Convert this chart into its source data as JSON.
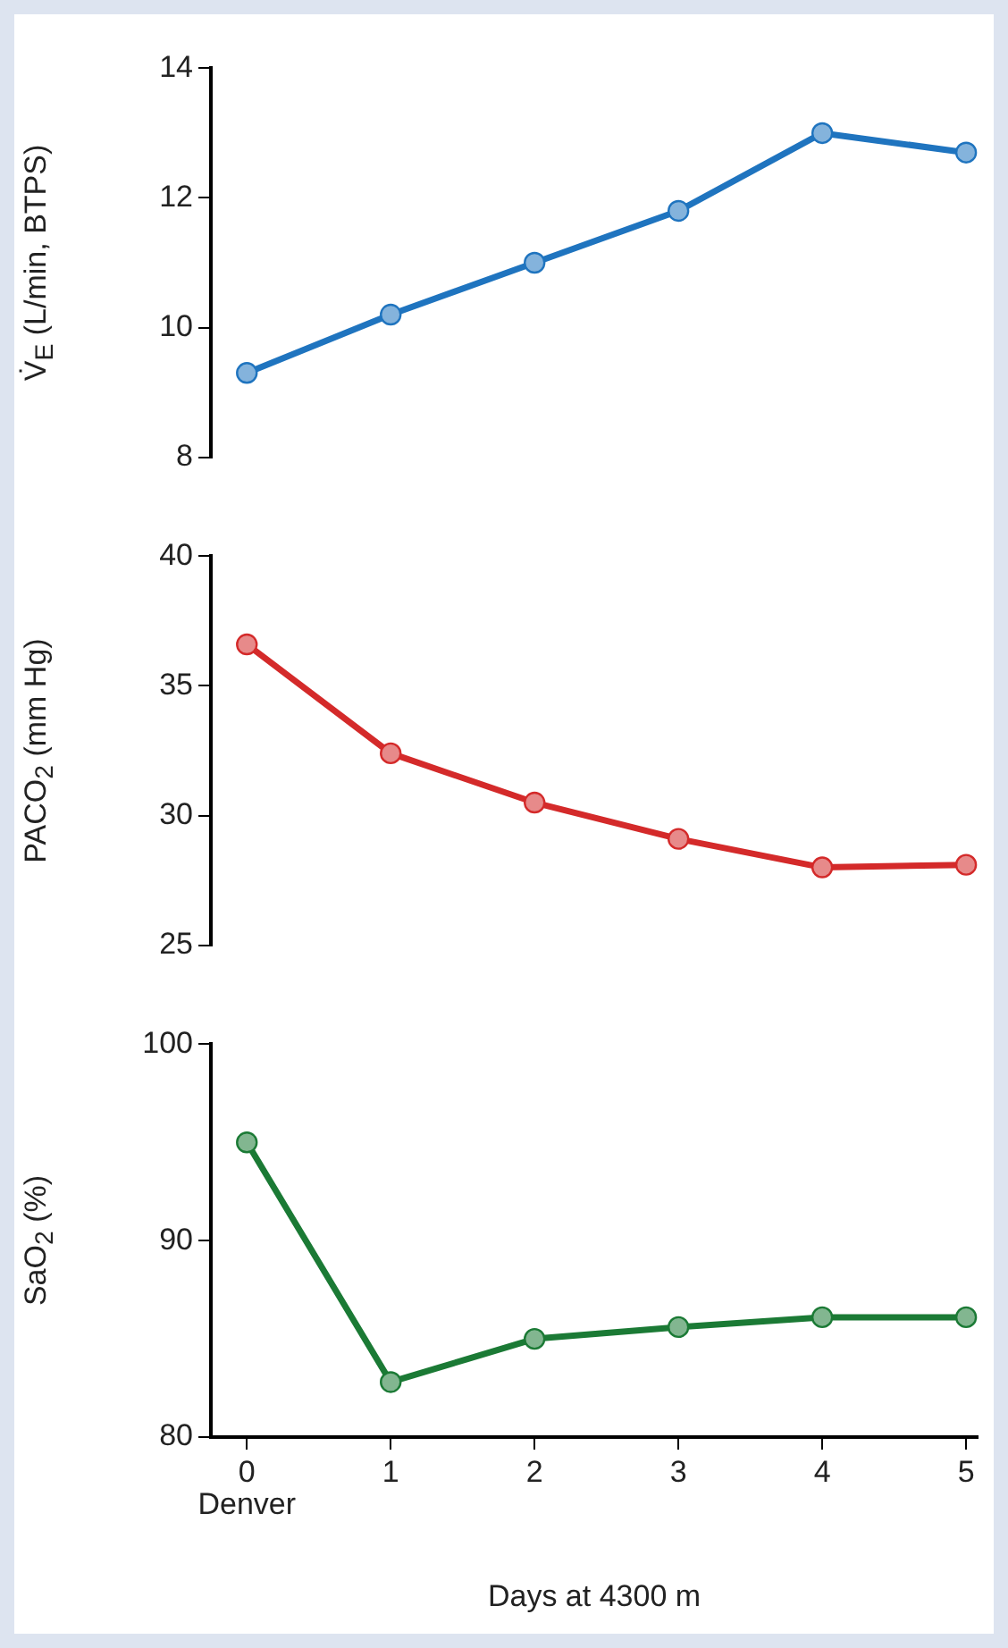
{
  "chart_data": [
    {
      "type": "line",
      "ylabel": "V̇$_{E}$ (L/min, BTPS)",
      "x": [
        0,
        1,
        2,
        3,
        4,
        5
      ],
      "ylim": [
        8,
        14
      ],
      "yticks": [
        8,
        10,
        12,
        14
      ],
      "tick_labels": "y",
      "marker": "circle",
      "series": [
        {
          "color": "#1f74bf",
          "values": [
            9.3,
            10.2,
            11.0,
            11.8,
            13.0,
            12.7
          ]
        }
      ]
    },
    {
      "type": "line",
      "ylabel": "PACO$_{2}$ (mm Hg)",
      "x": [
        0,
        1,
        2,
        3,
        4,
        5
      ],
      "ylim": [
        25,
        40
      ],
      "yticks": [
        25,
        30,
        35,
        40
      ],
      "tick_labels": "y",
      "marker": "circle",
      "series": [
        {
          "color": "#d42a2a",
          "values": [
            36.6,
            32.4,
            30.5,
            29.1,
            28.0,
            28.1
          ]
        }
      ]
    },
    {
      "type": "line",
      "ylabel": "SaO$_{2}$ (%)",
      "xlabel": "Days at 4300 m",
      "x": [
        0,
        1,
        2,
        3,
        4,
        5
      ],
      "xlim": [
        -0.25,
        5.08
      ],
      "xticks": [
        0,
        1,
        2,
        3,
        4,
        5
      ],
      "ylim": [
        80,
        100
      ],
      "yticks": [
        80,
        90,
        100
      ],
      "marker": "circle",
      "annotations": [
        "Denver"
      ],
      "series": [
        {
          "color": "#1b7a35",
          "values": [
            95.0,
            82.8,
            85.0,
            85.6,
            86.1,
            86.1
          ]
        }
      ]
    }
  ]
}
